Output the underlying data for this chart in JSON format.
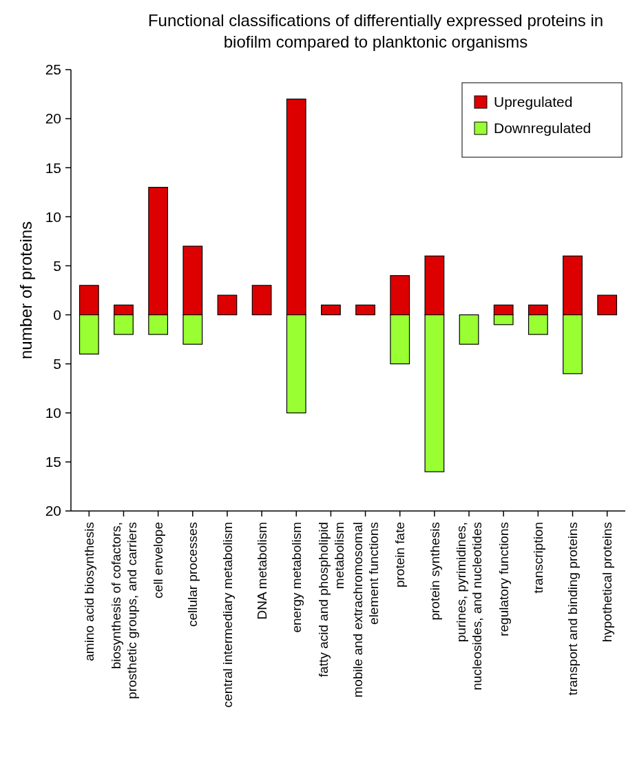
{
  "chart_data": {
    "type": "bar",
    "title": "Functional classifications of differentially expressed proteins in biofilm compared to planktonic organisms",
    "ylabel": "number of proteins",
    "legend": "top right",
    "stacked": true,
    "grid": false,
    "categories": [
      "amino acid biosynthesis",
      "biosynthesis of cofactors, prosthetic groups, and carriers",
      "cell envelope",
      "cellular processes",
      "central intermediary metabolism",
      "DNA metabolism",
      "energy metabolism",
      "fatty acid and phospholipid metabolism",
      "mobile and extrachromosomal element functions",
      "protein fate",
      "protein synthesis",
      "purines, pyrimidines, nucleosides, and nucleotides",
      "regulatory functions",
      "transcription",
      "transport and binding proteins",
      "hypothetical proteins"
    ],
    "series": [
      {
        "name": "Upregulated",
        "color": "#dd0000",
        "values": [
          3,
          1,
          13,
          7,
          2,
          3,
          22,
          1,
          1,
          4,
          6,
          null,
          1,
          1,
          6,
          2
        ]
      },
      {
        "name": "Downregulated",
        "color": "#99ff33",
        "values": [
          -4,
          -2,
          -2,
          -3,
          null,
          null,
          -10,
          null,
          null,
          -5,
          -16,
          -3,
          -1,
          -2,
          -6,
          null
        ]
      }
    ],
    "ylim": [
      -20,
      25
    ],
    "yticks": [
      25,
      20,
      15,
      10,
      5,
      0,
      {
        "value": -5,
        "label": "5"
      },
      {
        "value": -10,
        "label": "10"
      },
      {
        "value": -15,
        "label": "15"
      },
      {
        "value": -20,
        "label": "20"
      }
    ]
  }
}
